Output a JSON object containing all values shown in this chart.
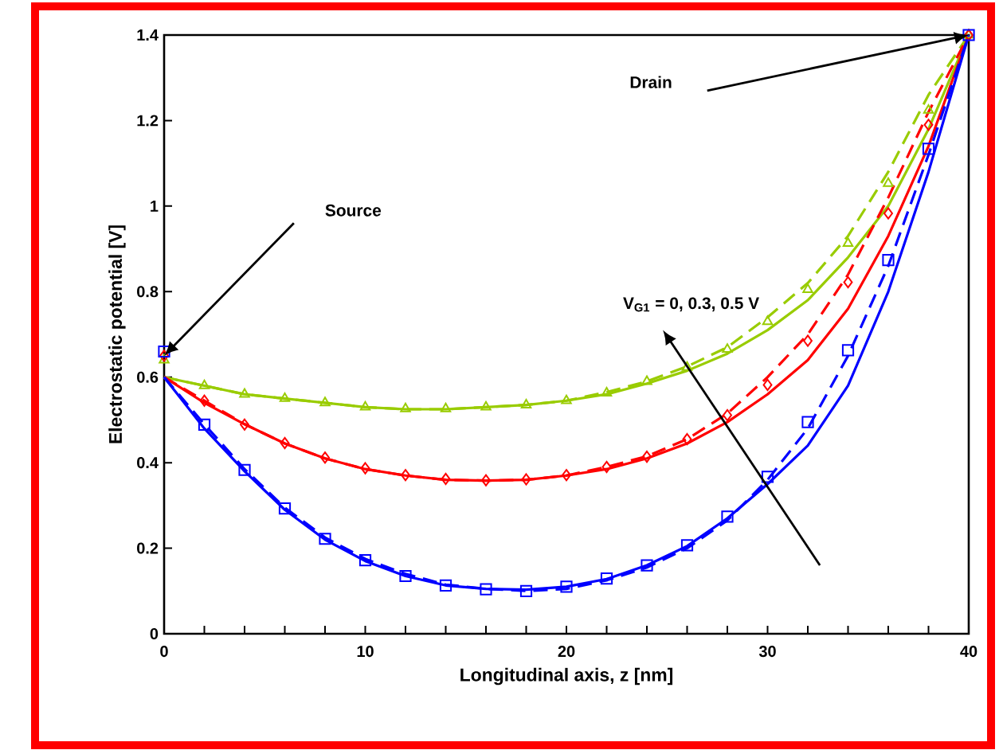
{
  "chart_data": {
    "type": "line",
    "xlabel": "Longitudinal axis, z [nm]",
    "ylabel": "Electrostatic potential [V]",
    "x": [
      0,
      2,
      4,
      6,
      8,
      10,
      12,
      14,
      16,
      18,
      20,
      22,
      24,
      26,
      28,
      30,
      32,
      34,
      36,
      38,
      40
    ],
    "xlim": [
      0,
      40
    ],
    "ylim": [
      0,
      1.4
    ],
    "xticks": [
      0,
      {
        "value": 2,
        "label": null
      },
      {
        "value": 4,
        "label": null
      },
      {
        "value": 6,
        "label": null
      },
      {
        "value": 8,
        "label": null
      },
      10,
      {
        "value": 12,
        "label": null
      },
      {
        "value": 14,
        "label": null
      },
      {
        "value": 16,
        "label": null
      },
      {
        "value": 18,
        "label": null
      },
      20,
      {
        "value": 22,
        "label": null
      },
      {
        "value": 24,
        "label": null
      },
      {
        "value": 26,
        "label": null
      },
      {
        "value": 28,
        "label": null
      },
      30,
      {
        "value": 32,
        "label": null
      },
      {
        "value": 34,
        "label": null
      },
      {
        "value": 36,
        "label": null
      },
      {
        "value": 38,
        "label": null
      },
      40
    ],
    "yticks": [
      0,
      0.2,
      0.4,
      0.6,
      0.8,
      1,
      1.2,
      1.4
    ],
    "series": [
      {
        "line_style": "solid",
        "color": "#99cc00",
        "values": [
          0.6,
          0.58,
          0.56,
          0.55,
          0.54,
          0.53,
          0.525,
          0.525,
          0.53,
          0.535,
          0.545,
          0.56,
          0.585,
          0.615,
          0.655,
          0.71,
          0.78,
          0.88,
          1.0,
          1.18,
          1.4
        ]
      },
      {
        "line_style": "dashed",
        "color": "#99cc00",
        "values": [
          0.6,
          0.58,
          0.56,
          0.55,
          0.54,
          0.53,
          0.525,
          0.525,
          0.53,
          0.535,
          0.545,
          0.565,
          0.59,
          0.625,
          0.67,
          0.74,
          0.82,
          0.93,
          1.08,
          1.26,
          1.4
        ]
      },
      {
        "line_style": "solid",
        "color": "#ff0000",
        "values": [
          0.6,
          0.54,
          0.49,
          0.445,
          0.41,
          0.385,
          0.37,
          0.36,
          0.358,
          0.36,
          0.37,
          0.385,
          0.41,
          0.445,
          0.495,
          0.56,
          0.64,
          0.76,
          0.93,
          1.14,
          1.4
        ]
      },
      {
        "line_style": "dashed",
        "color": "#ff0000",
        "values": [
          0.6,
          0.545,
          0.49,
          0.445,
          0.41,
          0.385,
          0.37,
          0.36,
          0.358,
          0.36,
          0.37,
          0.39,
          0.415,
          0.455,
          0.515,
          0.6,
          0.7,
          0.84,
          1.02,
          1.22,
          1.4
        ]
      },
      {
        "line_style": "solid",
        "color": "#0000ff",
        "values": [
          0.6,
          0.48,
          0.38,
          0.29,
          0.22,
          0.17,
          0.135,
          0.113,
          0.105,
          0.103,
          0.11,
          0.128,
          0.16,
          0.205,
          0.27,
          0.35,
          0.44,
          0.58,
          0.8,
          1.08,
          1.4
        ]
      },
      {
        "line_style": "dashed",
        "color": "#0000ff",
        "values": [
          0.6,
          0.49,
          0.385,
          0.295,
          0.225,
          0.175,
          0.14,
          0.115,
          0.105,
          0.1,
          0.105,
          0.125,
          0.155,
          0.2,
          0.265,
          0.36,
          0.48,
          0.65,
          0.86,
          1.12,
          1.4
        ]
      },
      {
        "type": "scatter",
        "marker": "triangle",
        "color": "#99cc00",
        "values": [
          0.64,
          0.58,
          0.56,
          0.55,
          0.54,
          0.53,
          0.526,
          0.526,
          0.53,
          0.535,
          0.545,
          0.563,
          0.59,
          0.623,
          0.665,
          0.73,
          0.805,
          0.913,
          1.053,
          1.224,
          1.4
        ]
      },
      {
        "type": "scatter",
        "marker": "diamond",
        "color": "#ff0000",
        "values": [
          0.65,
          0.545,
          0.489,
          0.446,
          0.412,
          0.387,
          0.371,
          0.362,
          0.359,
          0.361,
          0.371,
          0.39,
          0.414,
          0.455,
          0.511,
          0.582,
          0.685,
          0.822,
          0.983,
          1.19,
          1.4
        ]
      },
      {
        "type": "scatter",
        "marker": "square",
        "color": "#0000ff",
        "values": [
          0.66,
          0.489,
          0.383,
          0.293,
          0.222,
          0.172,
          0.135,
          0.113,
          0.104,
          0.1,
          0.11,
          0.129,
          0.16,
          0.207,
          0.274,
          0.367,
          0.495,
          0.663,
          0.874,
          1.134,
          1.4
        ]
      }
    ],
    "annotations": [
      "Source",
      "Drain",
      "V$_{G1}$ = 0, 0.3, 0.5 V"
    ]
  }
}
